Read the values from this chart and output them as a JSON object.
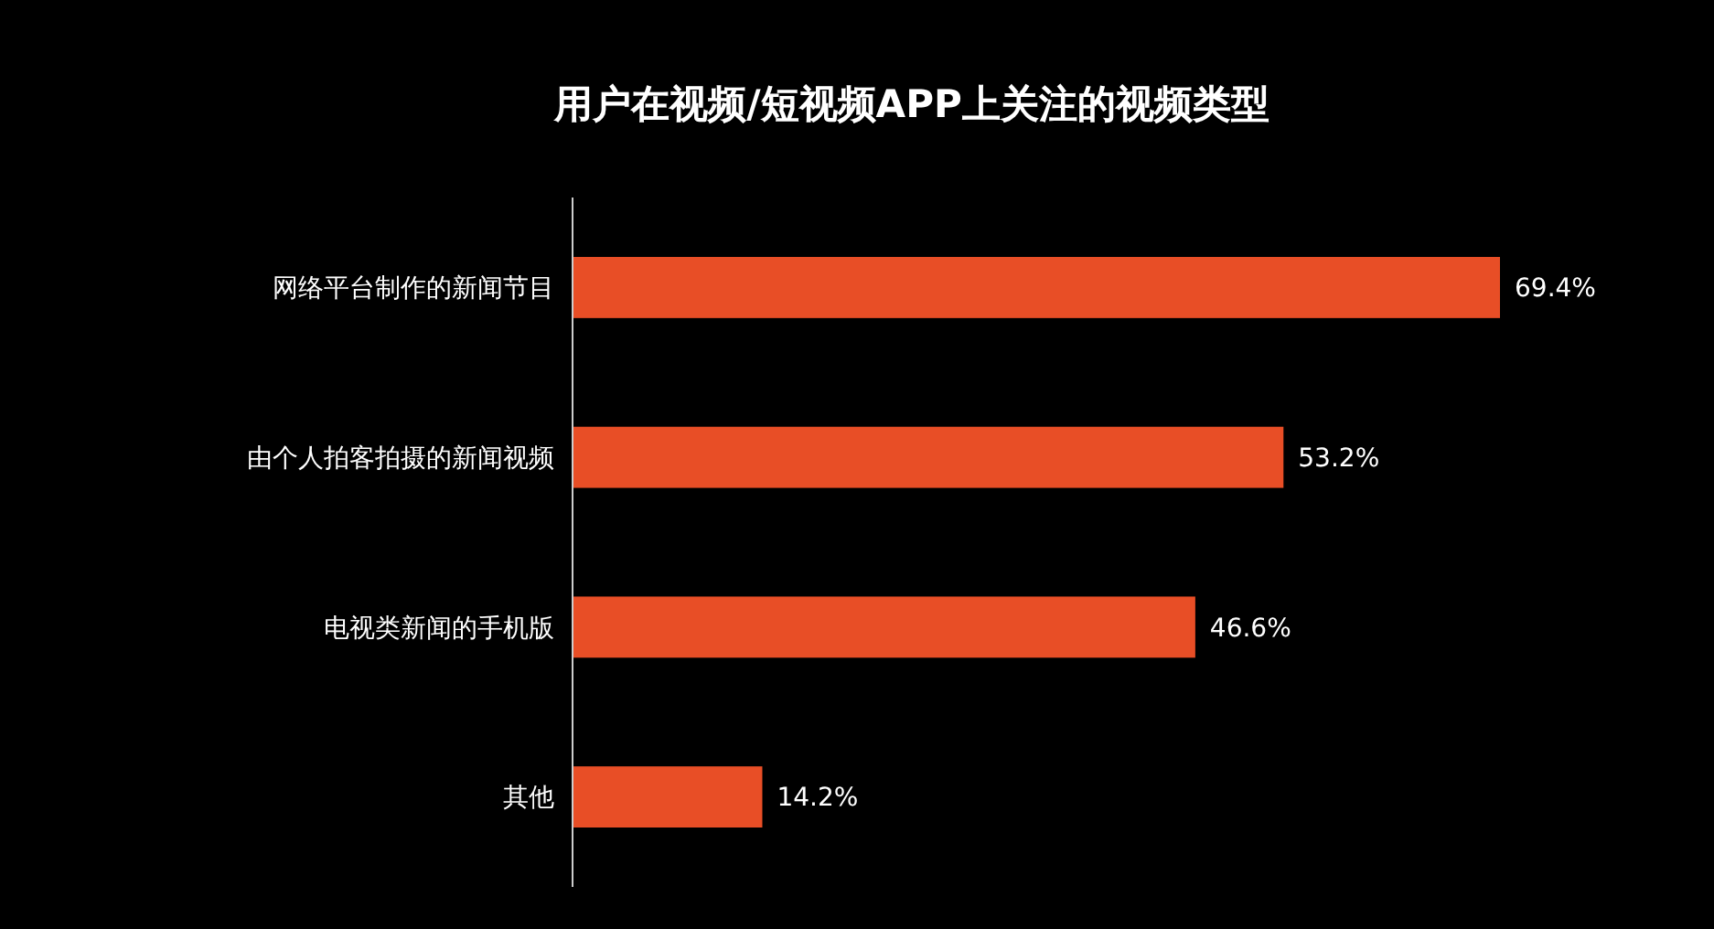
{
  "chart_data": {
    "type": "bar",
    "orientation": "horizontal",
    "title": "用户在视频/短视频APP上关注的视频类型",
    "categories": [
      "网络平台制作的新闻节目",
      "由个人拍客拍摄的新闻视频",
      "电视类新闻的手机版",
      "其他"
    ],
    "values": [
      69.4,
      53.2,
      46.6,
      14.2
    ],
    "value_labels": [
      "69.4%",
      "53.2%",
      "46.6%",
      "14.2%"
    ],
    "color": "#e84e26"
  }
}
